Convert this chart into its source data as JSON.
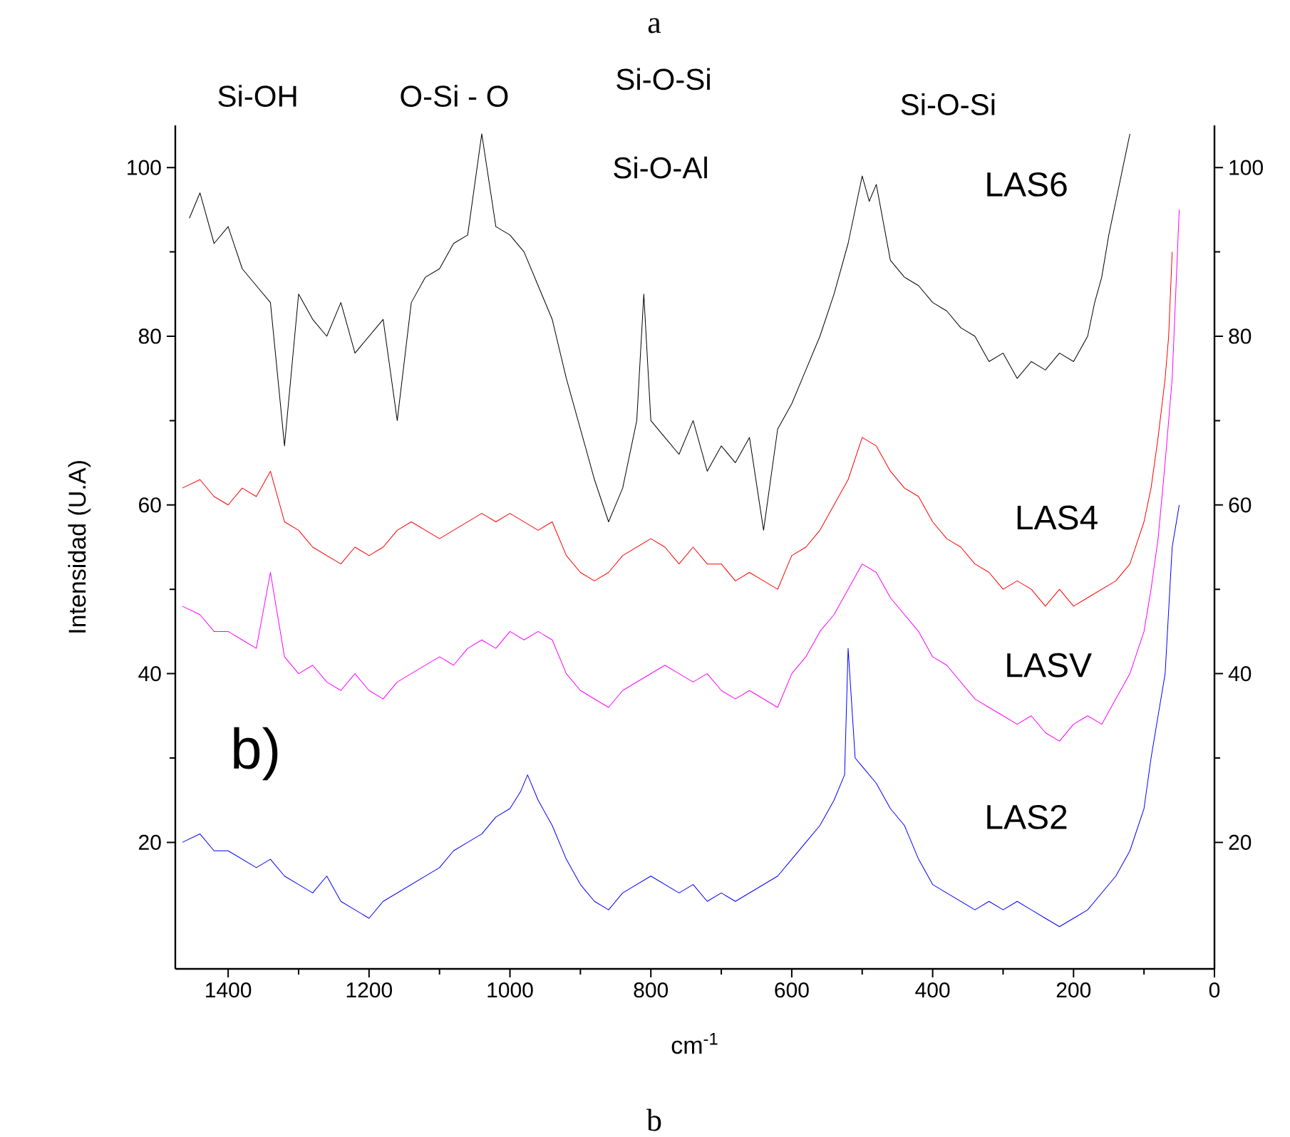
{
  "chart_data": {
    "type": "line",
    "title": "a",
    "xlabel": "cm$^{-1}$",
    "ylabel": "Intensidad (U.A)",
    "annotations": [
      "Si-OH",
      "O-Si - O",
      "Si-O-Si",
      "Si-O-Al",
      "Si-O-Si",
      "b)",
      "b"
    ],
    "xlim": [
      1475,
      0
    ],
    "xticks": [
      1400,
      1200,
      1000,
      800,
      600,
      400,
      200,
      0
    ],
    "ylim": [
      5,
      105
    ],
    "yticks": [
      20,
      40,
      60,
      80,
      100
    ],
    "y2lim": [
      5,
      105
    ],
    "y2ticks": [
      20,
      40,
      60,
      80,
      100
    ],
    "marker": "none",
    "line_style": "solid",
    "grid": false,
    "legend": false,
    "series": [
      {
        "name": "LAS6",
        "color": "#000000",
        "x": [
          1455,
          1440,
          1420,
          1400,
          1380,
          1360,
          1340,
          1320,
          1300,
          1280,
          1260,
          1240,
          1220,
          1200,
          1180,
          1160,
          1140,
          1120,
          1100,
          1080,
          1060,
          1040,
          1020,
          1000,
          980,
          960,
          940,
          920,
          900,
          880,
          860,
          840,
          820,
          810,
          800,
          780,
          760,
          740,
          720,
          700,
          680,
          660,
          640,
          620,
          600,
          580,
          560,
          540,
          520,
          500,
          490,
          480,
          460,
          440,
          420,
          400,
          380,
          360,
          340,
          320,
          300,
          280,
          260,
          240,
          220,
          200,
          180,
          170,
          160,
          150,
          140,
          130,
          120
        ],
        "values": [
          94,
          97,
          91,
          93,
          88,
          86,
          84,
          67,
          85,
          82,
          80,
          84,
          78,
          80,
          82,
          70,
          84,
          87,
          88,
          91,
          92,
          104,
          93,
          92,
          90,
          86,
          82,
          75,
          69,
          63,
          58,
          62,
          70,
          85,
          70,
          68,
          66,
          70,
          64,
          67,
          65,
          68,
          57,
          69,
          72,
          76,
          80,
          85,
          91,
          99,
          96,
          98,
          89,
          87,
          86,
          84,
          83,
          81,
          80,
          77,
          78,
          75,
          77,
          76,
          78,
          77,
          80,
          84,
          87,
          92,
          96,
          100,
          104
        ]
      },
      {
        "name": "LAS4",
        "color": "#ff0000",
        "x": [
          1465,
          1440,
          1420,
          1400,
          1380,
          1360,
          1340,
          1320,
          1300,
          1280,
          1260,
          1240,
          1220,
          1200,
          1180,
          1160,
          1140,
          1120,
          1100,
          1080,
          1060,
          1040,
          1020,
          1000,
          980,
          960,
          940,
          920,
          900,
          880,
          860,
          840,
          820,
          800,
          780,
          760,
          740,
          720,
          700,
          680,
          660,
          640,
          620,
          600,
          580,
          560,
          540,
          520,
          500,
          480,
          460,
          440,
          420,
          400,
          380,
          360,
          340,
          320,
          300,
          280,
          260,
          240,
          220,
          200,
          180,
          160,
          140,
          120,
          100,
          90,
          80,
          70,
          65,
          60
        ],
        "values": [
          62,
          63,
          61,
          60,
          62,
          61,
          64,
          58,
          57,
          55,
          54,
          53,
          55,
          54,
          55,
          57,
          58,
          57,
          56,
          57,
          58,
          59,
          58,
          59,
          58,
          57,
          58,
          54,
          52,
          51,
          52,
          54,
          55,
          56,
          55,
          53,
          55,
          53,
          53,
          51,
          52,
          51,
          50,
          54,
          55,
          57,
          60,
          63,
          68,
          67,
          64,
          62,
          61,
          58,
          56,
          55,
          53,
          52,
          50,
          51,
          50,
          48,
          50,
          48,
          49,
          50,
          51,
          53,
          58,
          62,
          68,
          75,
          80,
          90
        ]
      },
      {
        "name": "LASV",
        "color": "#ff00ff",
        "x": [
          1465,
          1440,
          1420,
          1400,
          1380,
          1360,
          1340,
          1320,
          1300,
          1280,
          1260,
          1240,
          1220,
          1200,
          1180,
          1160,
          1140,
          1120,
          1100,
          1080,
          1060,
          1040,
          1020,
          1000,
          980,
          960,
          940,
          920,
          900,
          880,
          860,
          840,
          820,
          800,
          780,
          760,
          740,
          720,
          700,
          680,
          660,
          640,
          620,
          600,
          580,
          560,
          540,
          520,
          500,
          480,
          460,
          440,
          420,
          400,
          380,
          360,
          340,
          320,
          300,
          280,
          260,
          240,
          220,
          200,
          180,
          160,
          140,
          120,
          100,
          90,
          80,
          70,
          60,
          50
        ],
        "values": [
          48,
          47,
          45,
          45,
          44,
          43,
          52,
          42,
          40,
          41,
          39,
          38,
          40,
          38,
          37,
          39,
          40,
          41,
          42,
          41,
          43,
          44,
          43,
          45,
          44,
          45,
          44,
          40,
          38,
          37,
          36,
          38,
          39,
          40,
          41,
          40,
          39,
          40,
          38,
          37,
          38,
          37,
          36,
          40,
          42,
          45,
          47,
          50,
          53,
          52,
          49,
          47,
          45,
          42,
          41,
          39,
          37,
          36,
          35,
          34,
          35,
          33,
          32,
          34,
          35,
          34,
          37,
          40,
          45,
          50,
          56,
          65,
          75,
          95
        ]
      },
      {
        "name": "LAS2",
        "color": "#0000ff",
        "x": [
          1465,
          1440,
          1420,
          1400,
          1380,
          1360,
          1340,
          1320,
          1300,
          1280,
          1260,
          1240,
          1220,
          1200,
          1180,
          1160,
          1140,
          1120,
          1100,
          1080,
          1060,
          1040,
          1020,
          1000,
          985,
          975,
          960,
          940,
          920,
          900,
          880,
          860,
          840,
          820,
          800,
          780,
          760,
          740,
          720,
          700,
          680,
          660,
          640,
          620,
          600,
          580,
          560,
          540,
          525,
          520,
          510,
          500,
          480,
          460,
          440,
          420,
          400,
          380,
          360,
          340,
          320,
          300,
          280,
          260,
          240,
          220,
          200,
          180,
          160,
          140,
          120,
          100,
          90,
          80,
          70,
          60,
          50
        ],
        "values": [
          20,
          21,
          19,
          19,
          18,
          17,
          18,
          16,
          15,
          14,
          16,
          13,
          12,
          11,
          13,
          14,
          15,
          16,
          17,
          19,
          20,
          21,
          23,
          24,
          26,
          28,
          25,
          22,
          18,
          15,
          13,
          12,
          14,
          15,
          16,
          15,
          14,
          15,
          13,
          14,
          13,
          14,
          15,
          16,
          18,
          20,
          22,
          25,
          28,
          43,
          30,
          29,
          27,
          24,
          22,
          18,
          15,
          14,
          13,
          12,
          13,
          12,
          13,
          12,
          11,
          10,
          11,
          12,
          14,
          16,
          19,
          24,
          30,
          35,
          40,
          55,
          60
        ]
      }
    ]
  }
}
